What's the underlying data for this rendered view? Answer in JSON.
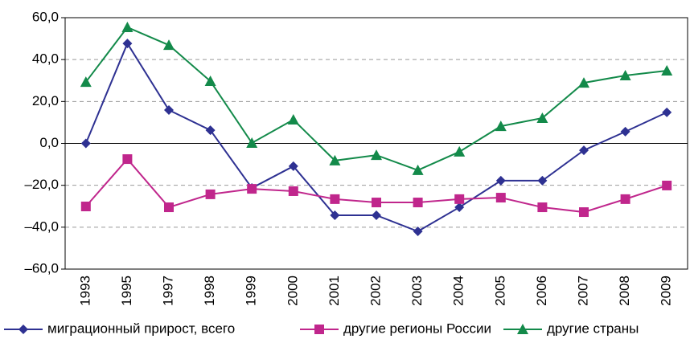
{
  "chart_data": {
    "type": "line",
    "categories": [
      "1993",
      "1995",
      "1997",
      "1998",
      "1999",
      "2000",
      "2001",
      "2002",
      "2003",
      "2004",
      "2005",
      "2006",
      "2007",
      "2008",
      "2009"
    ],
    "series": [
      {
        "name": "миграционный прирост, всего",
        "color": "#2e3192",
        "marker": "diamond",
        "values": [
          0,
          47.7,
          15.9,
          6.3,
          -21.3,
          -10.9,
          -34.3,
          -34.3,
          -42,
          -30.5,
          -17.8,
          -17.8,
          -3.3,
          5.6,
          14.8
        ]
      },
      {
        "name": "другие регионы России",
        "color": "#c0268c",
        "marker": "square",
        "values": [
          -30.1,
          -7.5,
          -30.5,
          -24.3,
          -21.7,
          -22.8,
          -26.6,
          -28.2,
          -28.2,
          -26.6,
          -25.9,
          -30.5,
          -32.8,
          -26.6,
          -20.1
        ]
      },
      {
        "name": "другие страны",
        "color": "#138a4a",
        "marker": "triangle",
        "values": [
          29.3,
          55.4,
          46.9,
          29.7,
          0.2,
          11.3,
          -8.2,
          -5.6,
          -12.8,
          -4,
          8.2,
          12.1,
          28.9,
          32.4,
          34.7
        ]
      }
    ],
    "ylim": [
      -60,
      60
    ],
    "yticks": [
      {
        "value": -60,
        "label": "–60,0"
      },
      {
        "value": -40,
        "label": "–40,0"
      },
      {
        "value": -20,
        "label": "–20,0"
      },
      {
        "value": 0,
        "label": "0,0"
      },
      {
        "value": 20,
        "label": "20,0"
      },
      {
        "value": 40,
        "label": "40,0"
      },
      {
        "value": 60,
        "label": "60,0"
      }
    ],
    "grid": true,
    "legend": "bottom"
  }
}
